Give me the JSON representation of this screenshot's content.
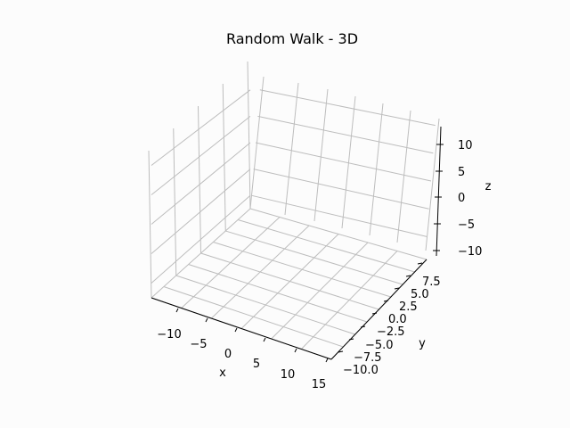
{
  "chart_data": {
    "type": "line",
    "projection": "3d",
    "title": "Random Walk - 3D",
    "xlabel": "x",
    "ylabel": "y",
    "zlabel": "z",
    "x_ticks": [
      "−10",
      "−5",
      "0",
      "5",
      "10",
      "15"
    ],
    "y_ticks": [
      "−10.0",
      "−7.5",
      "−5.0",
      "−2.5",
      "0.0",
      "2.5",
      "5.0",
      "7.5"
    ],
    "z_ticks": [
      "−10",
      "−5",
      "0",
      "5",
      "10"
    ],
    "grid": true,
    "legend": "none",
    "series": [],
    "colors": {
      "background": "#fcfcfc",
      "grid": "#bdbdbd",
      "axis": "#000000"
    }
  }
}
